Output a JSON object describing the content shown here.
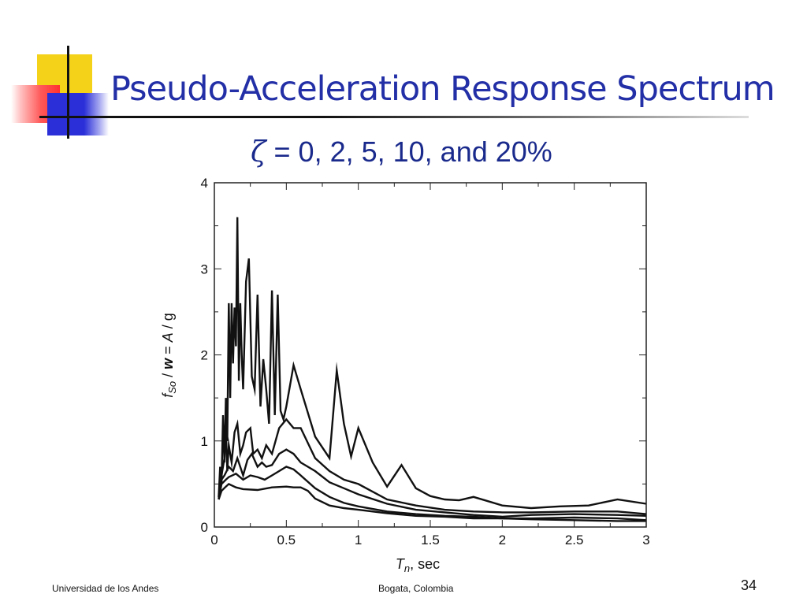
{
  "slide": {
    "title": "Pseudo-Acceleration Response Spectrum",
    "subtitle_symbol": "ζ",
    "subtitle_text": " = 0, 2, 5, 10, and 20%",
    "footer_left": "Universidad de los Andes",
    "footer_center": "Bogata, Colombia",
    "page_number": "34",
    "accent_color": "#222fa6"
  },
  "chart_data": {
    "type": "line",
    "xlim": [
      0,
      3
    ],
    "ylim": [
      0,
      4
    ],
    "x_ticks": [
      "0",
      "0.5",
      "1",
      "1.5",
      "2",
      "2.5",
      "3"
    ],
    "y_ticks": [
      "0",
      "1",
      "2",
      "3",
      "4"
    ],
    "xlabel": {
      "main": "T",
      "sub": "n",
      "rest": ", sec"
    },
    "ylabel": {
      "f": "f",
      "sub": "So",
      "slash1": " / ",
      "w": "w",
      "eq": " = ",
      "A": "A",
      "tail": " / g"
    },
    "line_color": "#111111",
    "series": [
      {
        "x": [
          0.03,
          0.04,
          0.05,
          0.06,
          0.07,
          0.08,
          0.09,
          0.1,
          0.11,
          0.12,
          0.13,
          0.14,
          0.15,
          0.16,
          0.17,
          0.18,
          0.19,
          0.2,
          0.22,
          0.24,
          0.26,
          0.28,
          0.3,
          0.32,
          0.34,
          0.36,
          0.38,
          0.4,
          0.42,
          0.44,
          0.46,
          0.48,
          0.5,
          0.55,
          0.6,
          0.7,
          0.8,
          0.85,
          0.9,
          0.95,
          1.0,
          1.1,
          1.2,
          1.3,
          1.4,
          1.5,
          1.6,
          1.7,
          1.8,
          1.9,
          2.0,
          2.2,
          2.4,
          2.6,
          2.8,
          3.0
        ],
        "y": [
          0.35,
          0.7,
          0.5,
          1.3,
          0.75,
          1.5,
          1.0,
          2.6,
          1.5,
          2.6,
          1.9,
          2.55,
          2.1,
          3.6,
          1.7,
          2.6,
          2.0,
          1.6,
          2.85,
          3.12,
          1.75,
          1.6,
          2.7,
          1.4,
          1.95,
          1.6,
          1.2,
          2.75,
          1.3,
          2.7,
          1.35,
          1.25,
          1.4,
          1.88,
          1.6,
          1.05,
          0.8,
          1.82,
          1.2,
          0.82,
          1.15,
          0.75,
          0.47,
          0.72,
          0.45,
          0.36,
          0.32,
          0.31,
          0.35,
          0.3,
          0.25,
          0.22,
          0.24,
          0.25,
          0.32,
          0.27
        ]
      },
      {
        "x": [
          0.03,
          0.05,
          0.07,
          0.08,
          0.09,
          0.1,
          0.12,
          0.14,
          0.16,
          0.18,
          0.2,
          0.22,
          0.25,
          0.27,
          0.3,
          0.33,
          0.36,
          0.4,
          0.45,
          0.5,
          0.55,
          0.6,
          0.7,
          0.8,
          0.9,
          1.0,
          1.2,
          1.4,
          1.6,
          1.8,
          2.0,
          2.2,
          2.5,
          2.8,
          3.0
        ],
        "y": [
          0.35,
          0.6,
          0.8,
          1.15,
          0.65,
          0.95,
          0.75,
          1.1,
          1.2,
          0.85,
          0.95,
          1.1,
          1.15,
          0.85,
          0.9,
          0.8,
          0.95,
          0.85,
          1.15,
          1.25,
          1.15,
          1.15,
          0.8,
          0.65,
          0.55,
          0.5,
          0.32,
          0.25,
          0.2,
          0.18,
          0.17,
          0.17,
          0.18,
          0.18,
          0.15
        ]
      },
      {
        "x": [
          0.03,
          0.05,
          0.07,
          0.1,
          0.13,
          0.16,
          0.2,
          0.23,
          0.26,
          0.3,
          0.33,
          0.36,
          0.4,
          0.45,
          0.5,
          0.55,
          0.6,
          0.7,
          0.8,
          0.9,
          1.0,
          1.2,
          1.4,
          1.6,
          1.8,
          2.0,
          2.2,
          2.5,
          2.8,
          3.0
        ],
        "y": [
          0.33,
          0.55,
          0.6,
          0.7,
          0.65,
          0.8,
          0.6,
          0.78,
          0.85,
          0.7,
          0.75,
          0.7,
          0.72,
          0.85,
          0.9,
          0.85,
          0.75,
          0.65,
          0.52,
          0.45,
          0.38,
          0.27,
          0.2,
          0.17,
          0.14,
          0.12,
          0.14,
          0.15,
          0.14,
          0.13
        ]
      },
      {
        "x": [
          0.03,
          0.05,
          0.08,
          0.1,
          0.15,
          0.2,
          0.25,
          0.3,
          0.35,
          0.4,
          0.45,
          0.5,
          0.55,
          0.6,
          0.7,
          0.8,
          0.9,
          1.0,
          1.2,
          1.4,
          1.6,
          1.8,
          2.0,
          2.2,
          2.5,
          2.8,
          3.0
        ],
        "y": [
          0.32,
          0.5,
          0.55,
          0.58,
          0.62,
          0.55,
          0.6,
          0.58,
          0.55,
          0.6,
          0.65,
          0.7,
          0.67,
          0.6,
          0.45,
          0.35,
          0.28,
          0.24,
          0.18,
          0.15,
          0.13,
          0.12,
          0.1,
          0.1,
          0.11,
          0.1,
          0.08
        ]
      },
      {
        "x": [
          0.03,
          0.05,
          0.08,
          0.1,
          0.15,
          0.2,
          0.3,
          0.4,
          0.5,
          0.55,
          0.6,
          0.65,
          0.7,
          0.8,
          0.9,
          1.0,
          1.2,
          1.4,
          1.6,
          1.8,
          2.0,
          2.2,
          2.5,
          2.8,
          3.0
        ],
        "y": [
          0.32,
          0.42,
          0.47,
          0.5,
          0.46,
          0.44,
          0.43,
          0.46,
          0.47,
          0.46,
          0.46,
          0.42,
          0.33,
          0.25,
          0.22,
          0.2,
          0.16,
          0.13,
          0.12,
          0.1,
          0.1,
          0.09,
          0.08,
          0.07,
          0.07
        ]
      }
    ]
  }
}
